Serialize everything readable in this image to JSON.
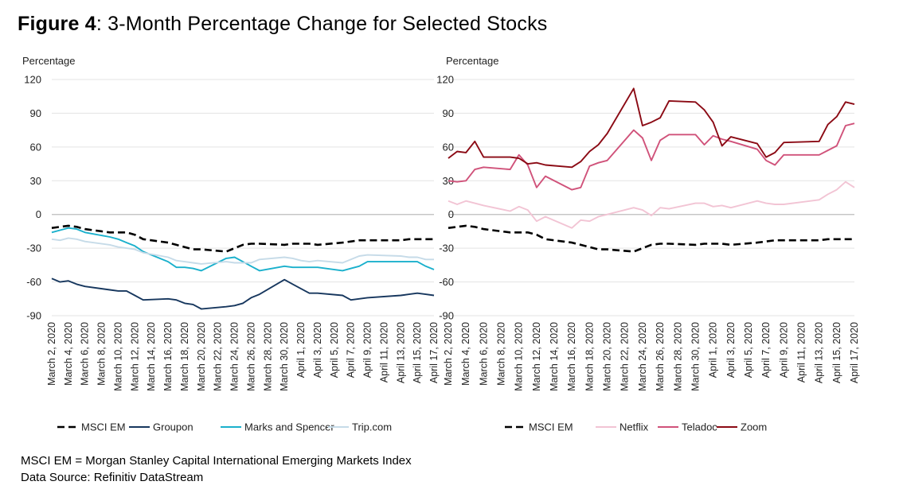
{
  "figure": {
    "label": "Figure 4",
    "title": "3-Month Percentage Change for Selected Stocks"
  },
  "notes": {
    "line1": "MSCI EM = Morgan Stanley Capital International Emerging Markets Index",
    "line2": "Data Source: Refinitiv DataStream"
  },
  "chart_data": [
    {
      "type": "line",
      "ylabel": "Percentage",
      "ylim": [
        -90,
        120
      ],
      "yticks": [
        120,
        90,
        60,
        30,
        0,
        -30,
        -60,
        -90
      ],
      "grid": "horizontal",
      "legend_position": "bottom",
      "x_tick_labels": [
        "March 2, 2020",
        "March 4, 2020",
        "March 6, 2020",
        "March 8, 2020",
        "March 10, 2020",
        "March 12, 2020",
        "March 14, 2020",
        "March 16, 2020",
        "March 18, 2020",
        "March 20, 2020",
        "March 22, 2020",
        "March 24, 2020",
        "March 26, 2020",
        "March 28, 2020",
        "March 30, 2020",
        "April 1, 2020",
        "April 3, 2020",
        "April 5, 2020",
        "April 7, 2020",
        "April 9, 2020",
        "April 11, 2020",
        "April 13, 2020",
        "April 15, 2020",
        "April 17, 2020"
      ],
      "x": [
        "2020-03-02",
        "2020-03-03",
        "2020-03-04",
        "2020-03-05",
        "2020-03-06",
        "2020-03-09",
        "2020-03-10",
        "2020-03-11",
        "2020-03-12",
        "2020-03-13",
        "2020-03-16",
        "2020-03-17",
        "2020-03-18",
        "2020-03-19",
        "2020-03-20",
        "2020-03-23",
        "2020-03-24",
        "2020-03-25",
        "2020-03-26",
        "2020-03-27",
        "2020-03-30",
        "2020-03-31",
        "2020-04-01",
        "2020-04-02",
        "2020-04-03",
        "2020-04-06",
        "2020-04-07",
        "2020-04-08",
        "2020-04-09",
        "2020-04-13",
        "2020-04-14",
        "2020-04-15",
        "2020-04-16",
        "2020-04-17"
      ],
      "series": [
        {
          "name": "MSCI EM",
          "color": "#000000",
          "dash": true,
          "values": [
            -12,
            -11,
            -10,
            -11,
            -13,
            -16,
            -16,
            -16,
            -18,
            -22,
            -25,
            -27,
            -29,
            -31,
            -31,
            -33,
            -30,
            -27,
            -26,
            -26,
            -27,
            -26,
            -26,
            -26,
            -27,
            -25,
            -24,
            -23,
            -23,
            -23,
            -22,
            -22,
            -22,
            -22
          ]
        },
        {
          "name": "Groupon",
          "color": "#17375e",
          "values": [
            -57,
            -60,
            -59,
            -62,
            -64,
            -67,
            -68,
            -68,
            -72,
            -76,
            -75,
            -76,
            -79,
            -80,
            -84,
            -82,
            -81,
            -79,
            -74,
            -71,
            -58,
            -62,
            -66,
            -70,
            -70,
            -72,
            -76,
            -75,
            -74,
            -72,
            -71,
            -70,
            -71,
            -72
          ]
        },
        {
          "name": "Marks and Spencer",
          "color": "#1ab0cc",
          "values": [
            -16,
            -14,
            -12,
            -13,
            -16,
            -20,
            -22,
            -25,
            -28,
            -33,
            -42,
            -47,
            -47,
            -48,
            -50,
            -39,
            -38,
            -42,
            -46,
            -50,
            -46,
            -47,
            -47,
            -47,
            -47,
            -50,
            -48,
            -46,
            -42,
            -42,
            -42,
            -42,
            -46,
            -49
          ]
        },
        {
          "name": "Trip.com",
          "color": "#c6dbe8",
          "values": [
            -22,
            -23,
            -21,
            -22,
            -24,
            -27,
            -29,
            -30,
            -31,
            -34,
            -38,
            -41,
            -42,
            -43,
            -44,
            -42,
            -43,
            -43,
            -43,
            -40,
            -38,
            -39,
            -41,
            -42,
            -41,
            -43,
            -40,
            -37,
            -36,
            -37,
            -38,
            -38,
            -40,
            -40
          ]
        }
      ]
    },
    {
      "type": "line",
      "ylabel": "Percentage",
      "ylim": [
        -90,
        120
      ],
      "yticks": [
        120,
        90,
        60,
        30,
        0,
        -30,
        -60,
        -90
      ],
      "grid": "horizontal",
      "legend_position": "bottom",
      "x_tick_labels": [
        "March 2, 2020",
        "March 4, 2020",
        "March 6, 2020",
        "March 8, 2020",
        "March 10, 2020",
        "March 12, 2020",
        "March 14, 2020",
        "March 16, 2020",
        "March 18, 2020",
        "March 20, 2020",
        "March 22, 2020",
        "March 24, 2020",
        "March 26, 2020",
        "March 28, 2020",
        "March 30, 2020",
        "April 1, 2020",
        "April 3, 2020",
        "April 5, 2020",
        "April 7, 2020",
        "April 9, 2020",
        "April 11, 2020",
        "April 13, 2020",
        "April 15, 2020",
        "April 17, 2020"
      ],
      "x": [
        "2020-03-02",
        "2020-03-03",
        "2020-03-04",
        "2020-03-05",
        "2020-03-06",
        "2020-03-09",
        "2020-03-10",
        "2020-03-11",
        "2020-03-12",
        "2020-03-13",
        "2020-03-16",
        "2020-03-17",
        "2020-03-18",
        "2020-03-19",
        "2020-03-20",
        "2020-03-23",
        "2020-03-24",
        "2020-03-25",
        "2020-03-26",
        "2020-03-27",
        "2020-03-30",
        "2020-03-31",
        "2020-04-01",
        "2020-04-02",
        "2020-04-03",
        "2020-04-06",
        "2020-04-07",
        "2020-04-08",
        "2020-04-09",
        "2020-04-13",
        "2020-04-14",
        "2020-04-15",
        "2020-04-16",
        "2020-04-17"
      ],
      "series": [
        {
          "name": "MSCI EM",
          "color": "#000000",
          "dash": true,
          "values": [
            -12,
            -11,
            -10,
            -11,
            -13,
            -16,
            -16,
            -16,
            -18,
            -22,
            -25,
            -27,
            -29,
            -31,
            -31,
            -33,
            -30,
            -27,
            -26,
            -26,
            -27,
            -26,
            -26,
            -26,
            -27,
            -25,
            -24,
            -23,
            -23,
            -23,
            -22,
            -22,
            -22,
            -22
          ]
        },
        {
          "name": "Netflix",
          "color": "#f2c4d4",
          "values": [
            12,
            9,
            12,
            10,
            8,
            3,
            7,
            4,
            -6,
            -2,
            -12,
            -5,
            -6,
            -2,
            0,
            6,
            4,
            -1,
            6,
            5,
            10,
            10,
            7,
            8,
            6,
            12,
            10,
            9,
            9,
            13,
            18,
            22,
            29,
            24
          ]
        },
        {
          "name": "Teladoc",
          "color": "#d0527a",
          "values": [
            30,
            29,
            30,
            40,
            42,
            40,
            53,
            44,
            24,
            34,
            22,
            24,
            43,
            46,
            48,
            75,
            68,
            48,
            66,
            71,
            71,
            62,
            70,
            67,
            65,
            58,
            48,
            44,
            53,
            53,
            57,
            61,
            79,
            81
          ]
        },
        {
          "name": "Zoom",
          "color": "#8b0a14",
          "values": [
            50,
            56,
            55,
            65,
            51,
            51,
            50,
            45,
            46,
            44,
            42,
            47,
            56,
            62,
            72,
            112,
            79,
            82,
            86,
            101,
            100,
            93,
            82,
            61,
            69,
            63,
            51,
            55,
            64,
            65,
            80,
            87,
            100,
            98
          ]
        }
      ]
    }
  ]
}
